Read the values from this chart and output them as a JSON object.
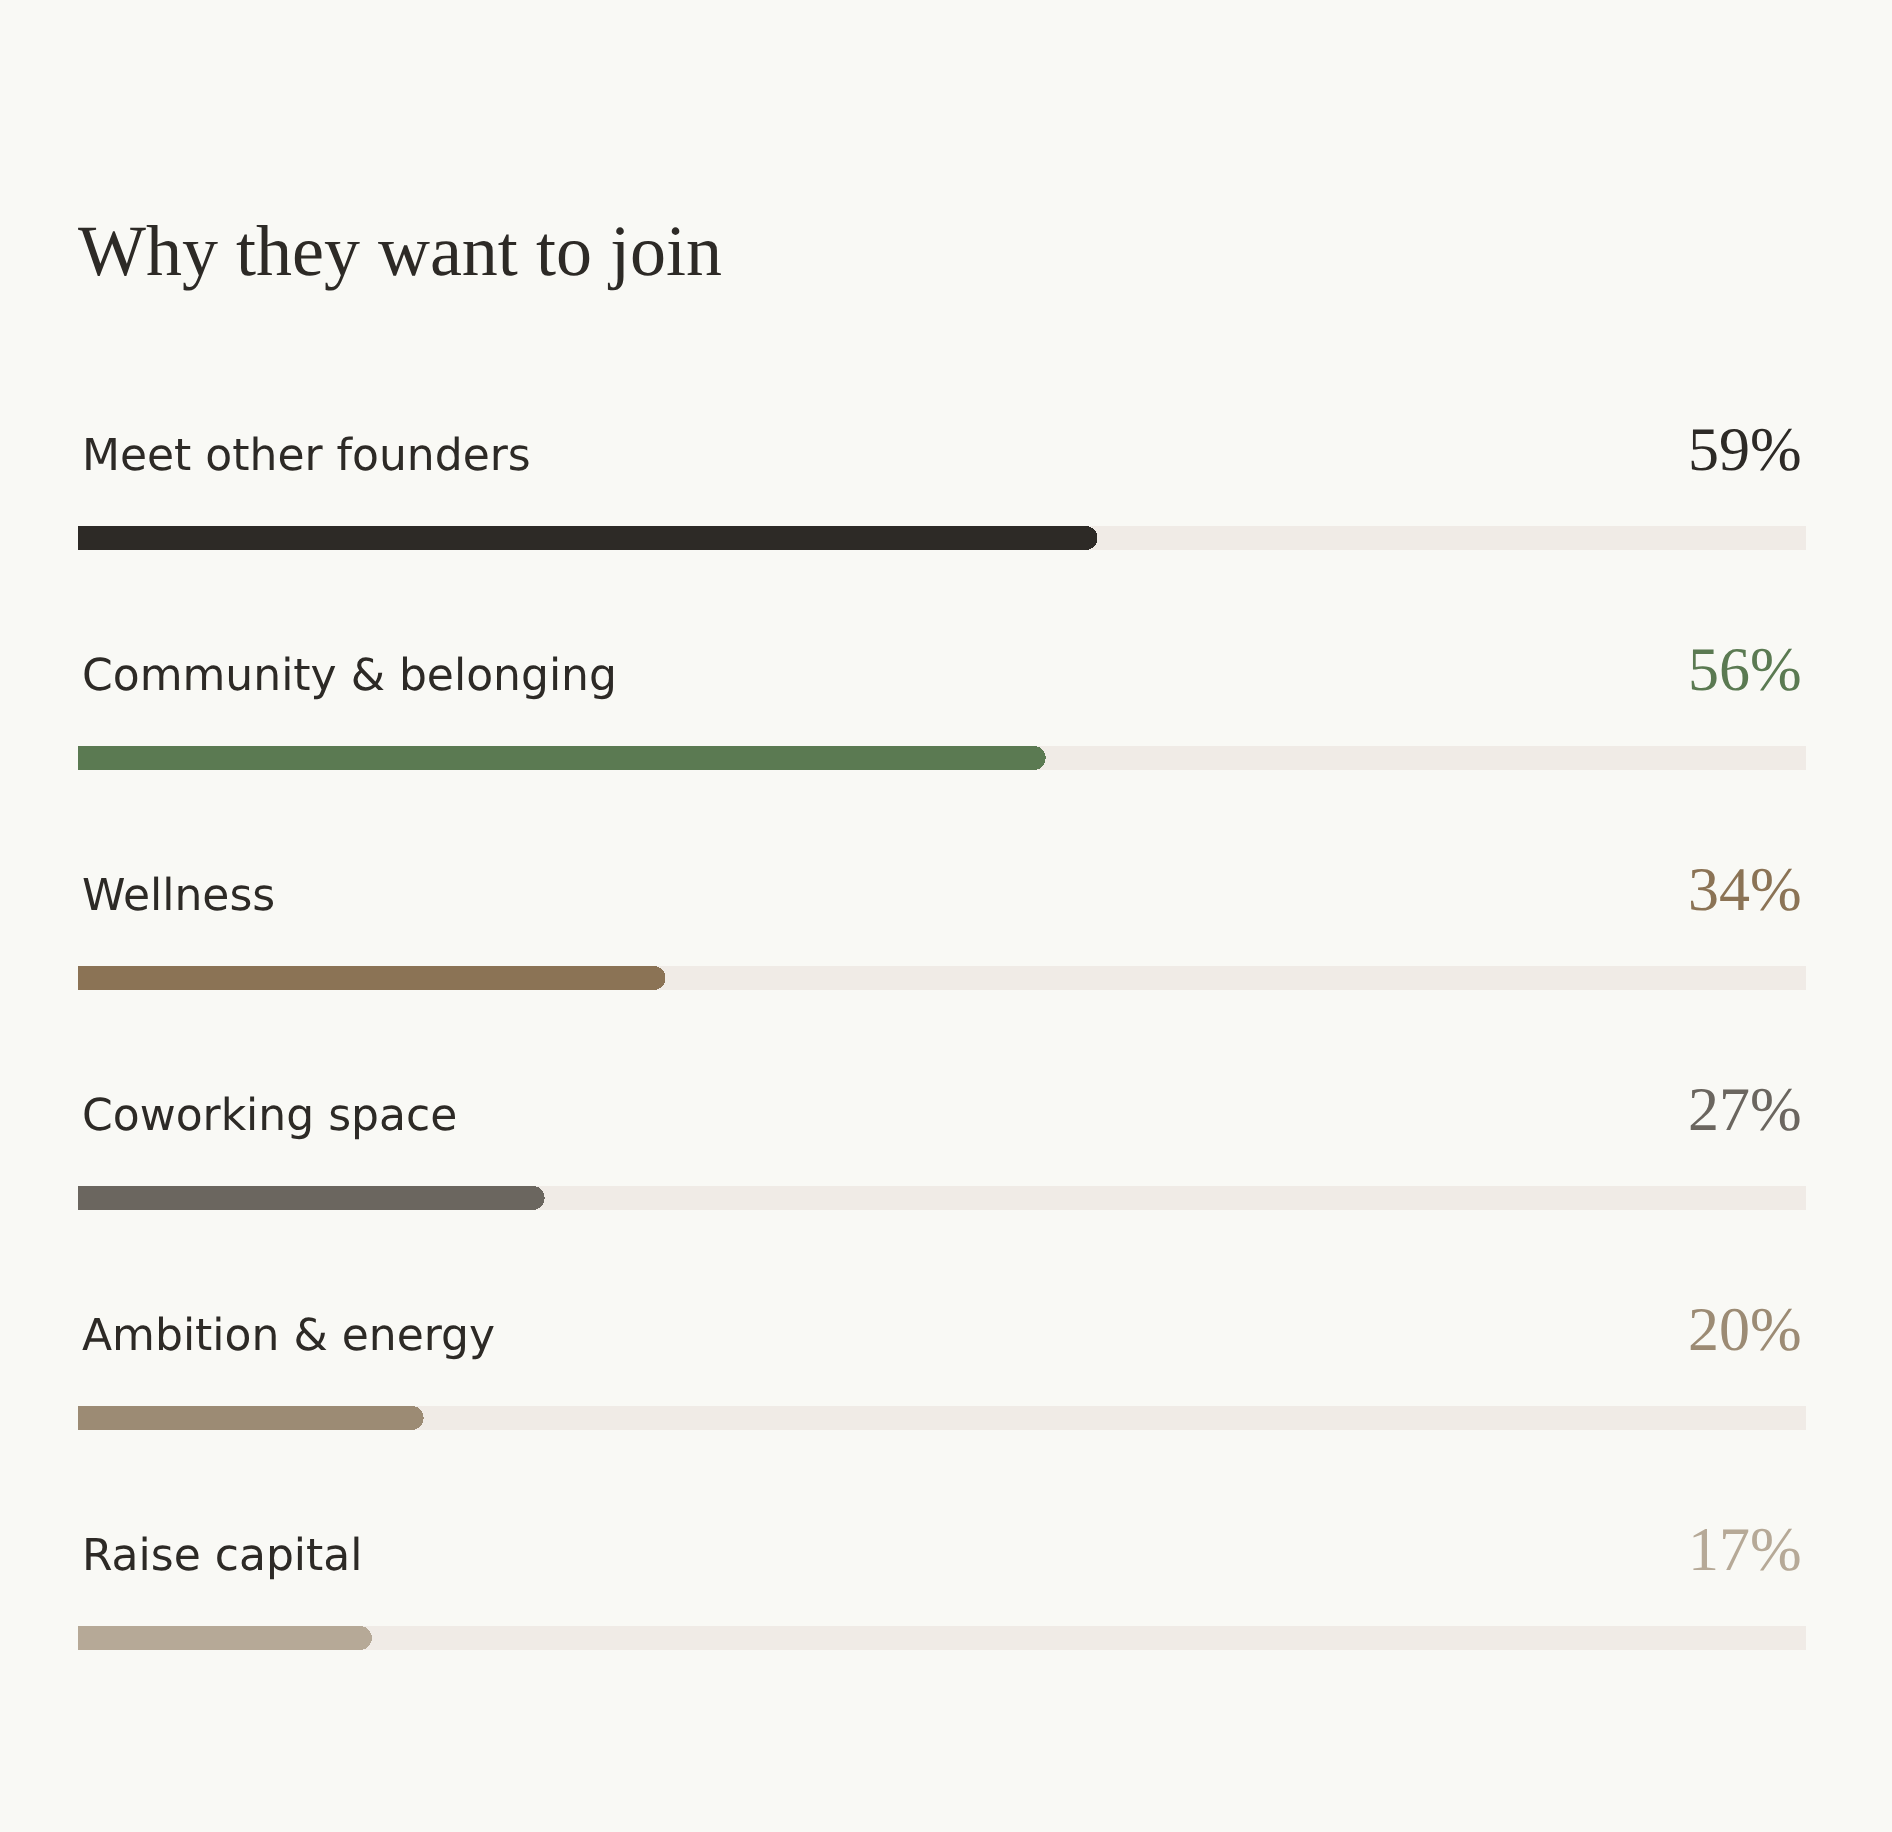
{
  "chart_data": {
    "type": "bar",
    "orientation": "horizontal",
    "title": "Why they want to join",
    "categories": [
      "Meet other founders",
      "Community & belonging",
      "Wellness",
      "Coworking space",
      "Ambition & energy",
      "Raise capital"
    ],
    "values": [
      59,
      56,
      34,
      27,
      20,
      17
    ],
    "value_labels": [
      "59%",
      "56%",
      "34%",
      "27%",
      "20%",
      "17%"
    ],
    "colors": [
      "#2d2a26",
      "#5b7a52",
      "#8b7355",
      "#6b665f",
      "#9c8b74",
      "#b6a997"
    ],
    "xlim": [
      0,
      100
    ],
    "tick_labels": "y"
  }
}
